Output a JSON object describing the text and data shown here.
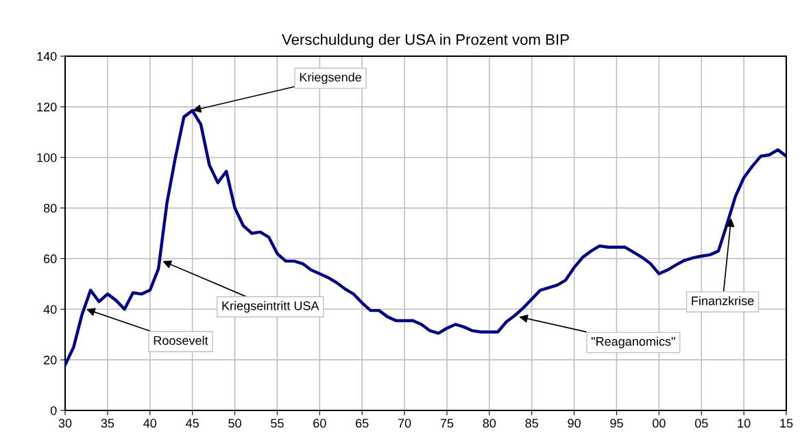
{
  "chart_data": {
    "type": "line",
    "title": "Verschuldung der USA in Prozent vom BIP",
    "x": [
      1930,
      1931,
      1932,
      1933,
      1934,
      1935,
      1936,
      1937,
      1938,
      1939,
      1940,
      1941,
      1942,
      1943,
      1944,
      1945,
      1946,
      1947,
      1948,
      1949,
      1950,
      1951,
      1952,
      1953,
      1954,
      1955,
      1956,
      1957,
      1958,
      1959,
      1960,
      1961,
      1962,
      1963,
      1964,
      1965,
      1966,
      1967,
      1968,
      1969,
      1970,
      1971,
      1972,
      1973,
      1974,
      1975,
      1976,
      1977,
      1978,
      1979,
      1980,
      1981,
      1982,
      1983,
      1984,
      1985,
      1986,
      1987,
      1988,
      1989,
      1990,
      1991,
      1992,
      1993,
      1994,
      1995,
      1996,
      1997,
      1998,
      1999,
      2000,
      2001,
      2002,
      2003,
      2004,
      2005,
      2006,
      2007,
      2008,
      2009,
      2010,
      2011,
      2012,
      2013,
      2014,
      2015
    ],
    "series": [
      {
        "color": "#000080",
        "values": [
          18,
          25,
          38,
          47.5,
          43,
          46,
          43.5,
          40,
          46.5,
          46,
          47.5,
          56,
          82,
          100,
          116,
          118.5,
          113,
          97,
          90,
          94.5,
          80,
          73,
          70,
          70.5,
          68.5,
          62,
          59,
          59,
          58,
          55.5,
          54,
          52.5,
          50.5,
          48,
          46,
          42.5,
          39.5,
          39.5,
          37,
          35.5,
          35.5,
          35.5,
          34,
          31.5,
          30.5,
          32.5,
          34,
          33,
          31.5,
          31,
          31,
          31,
          35,
          37.5,
          40.5,
          44,
          47.5,
          48.5,
          49.5,
          51.5,
          56.5,
          60.5,
          63,
          65,
          64.5,
          64.5,
          64.5,
          62.5,
          60.5,
          58,
          54,
          55.5,
          57.5,
          59.3,
          60.3,
          61,
          61.5,
          63,
          73.5,
          84.5,
          92,
          96.5,
          100.5,
          101,
          103,
          100.5
        ]
      }
    ],
    "xlim": [
      1930,
      2015
    ],
    "xticks": [
      {
        "value": 1930,
        "label": "30"
      },
      {
        "value": 1935,
        "label": "35"
      },
      {
        "value": 1940,
        "label": "40"
      },
      {
        "value": 1945,
        "label": "45"
      },
      {
        "value": 1950,
        "label": "50"
      },
      {
        "value": 1955,
        "label": "55"
      },
      {
        "value": 1960,
        "label": "60"
      },
      {
        "value": 1965,
        "label": "65"
      },
      {
        "value": 1970,
        "label": "70"
      },
      {
        "value": 1975,
        "label": "75"
      },
      {
        "value": 1980,
        "label": "80"
      },
      {
        "value": 1985,
        "label": "85"
      },
      {
        "value": 1990,
        "label": "90"
      },
      {
        "value": 1995,
        "label": "95"
      },
      {
        "value": 2000,
        "label": "00"
      },
      {
        "value": 2005,
        "label": "05"
      },
      {
        "value": 2010,
        "label": "10"
      },
      {
        "value": 2015,
        "label": "15"
      }
    ],
    "ylim": [
      0,
      140
    ],
    "yticks": [
      0,
      20,
      40,
      60,
      80,
      100,
      120,
      140
    ],
    "grid": true,
    "marker": "none",
    "line_style": "solid",
    "annotations": [
      {
        "text": "Roosevelt",
        "x": 1932.5,
        "y": 40
      },
      {
        "text": "Kriegseintritt USA",
        "x": 1941.5,
        "y": 59
      },
      {
        "text": "Kriegsende",
        "x": 1945,
        "y": 118.5
      },
      {
        "text": "\"Reaganomics\"",
        "x": 1983.5,
        "y": 37
      },
      {
        "text": "Finanzkrise",
        "x": 2008.5,
        "y": 76
      }
    ]
  }
}
